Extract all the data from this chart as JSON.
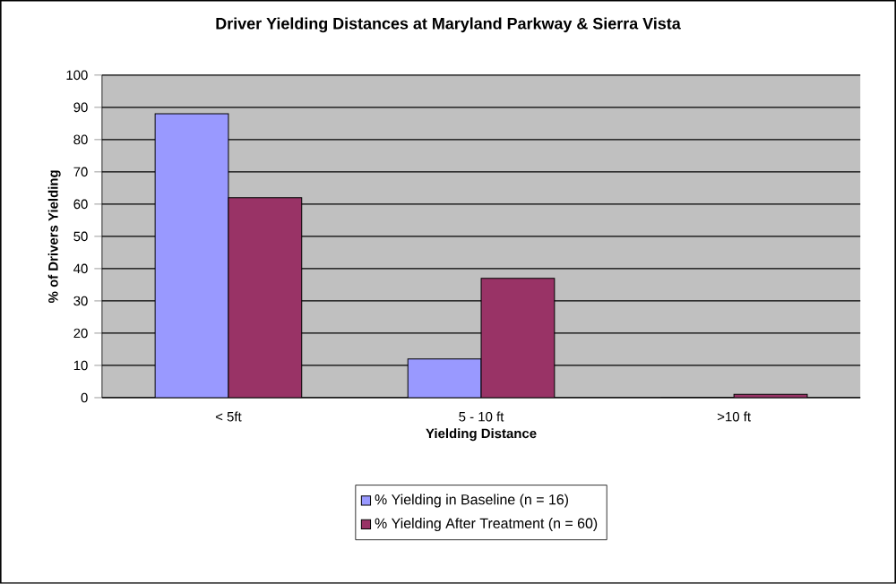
{
  "chart_data": {
    "type": "bar",
    "title": "Driver Yielding Distances at Maryland Parkway & Sierra Vista",
    "xlabel": "Yielding Distance",
    "ylabel": "% of Drivers Yielding",
    "categories": [
      "<  5ft",
      "5 - 10 ft",
      ">10 ft"
    ],
    "series": [
      {
        "name": "% Yielding in Baseline (n = 16)",
        "color": "#9999ff",
        "values": [
          88,
          12,
          0
        ]
      },
      {
        "name": "% Yielding After Treatment (n = 60)",
        "color": "#993366",
        "values": [
          62,
          37,
          1
        ]
      }
    ],
    "ylim": [
      0,
      100
    ],
    "yticks": [
      0,
      10,
      20,
      30,
      40,
      50,
      60,
      70,
      80,
      90,
      100
    ],
    "grid": "y",
    "legend": "bottom"
  }
}
